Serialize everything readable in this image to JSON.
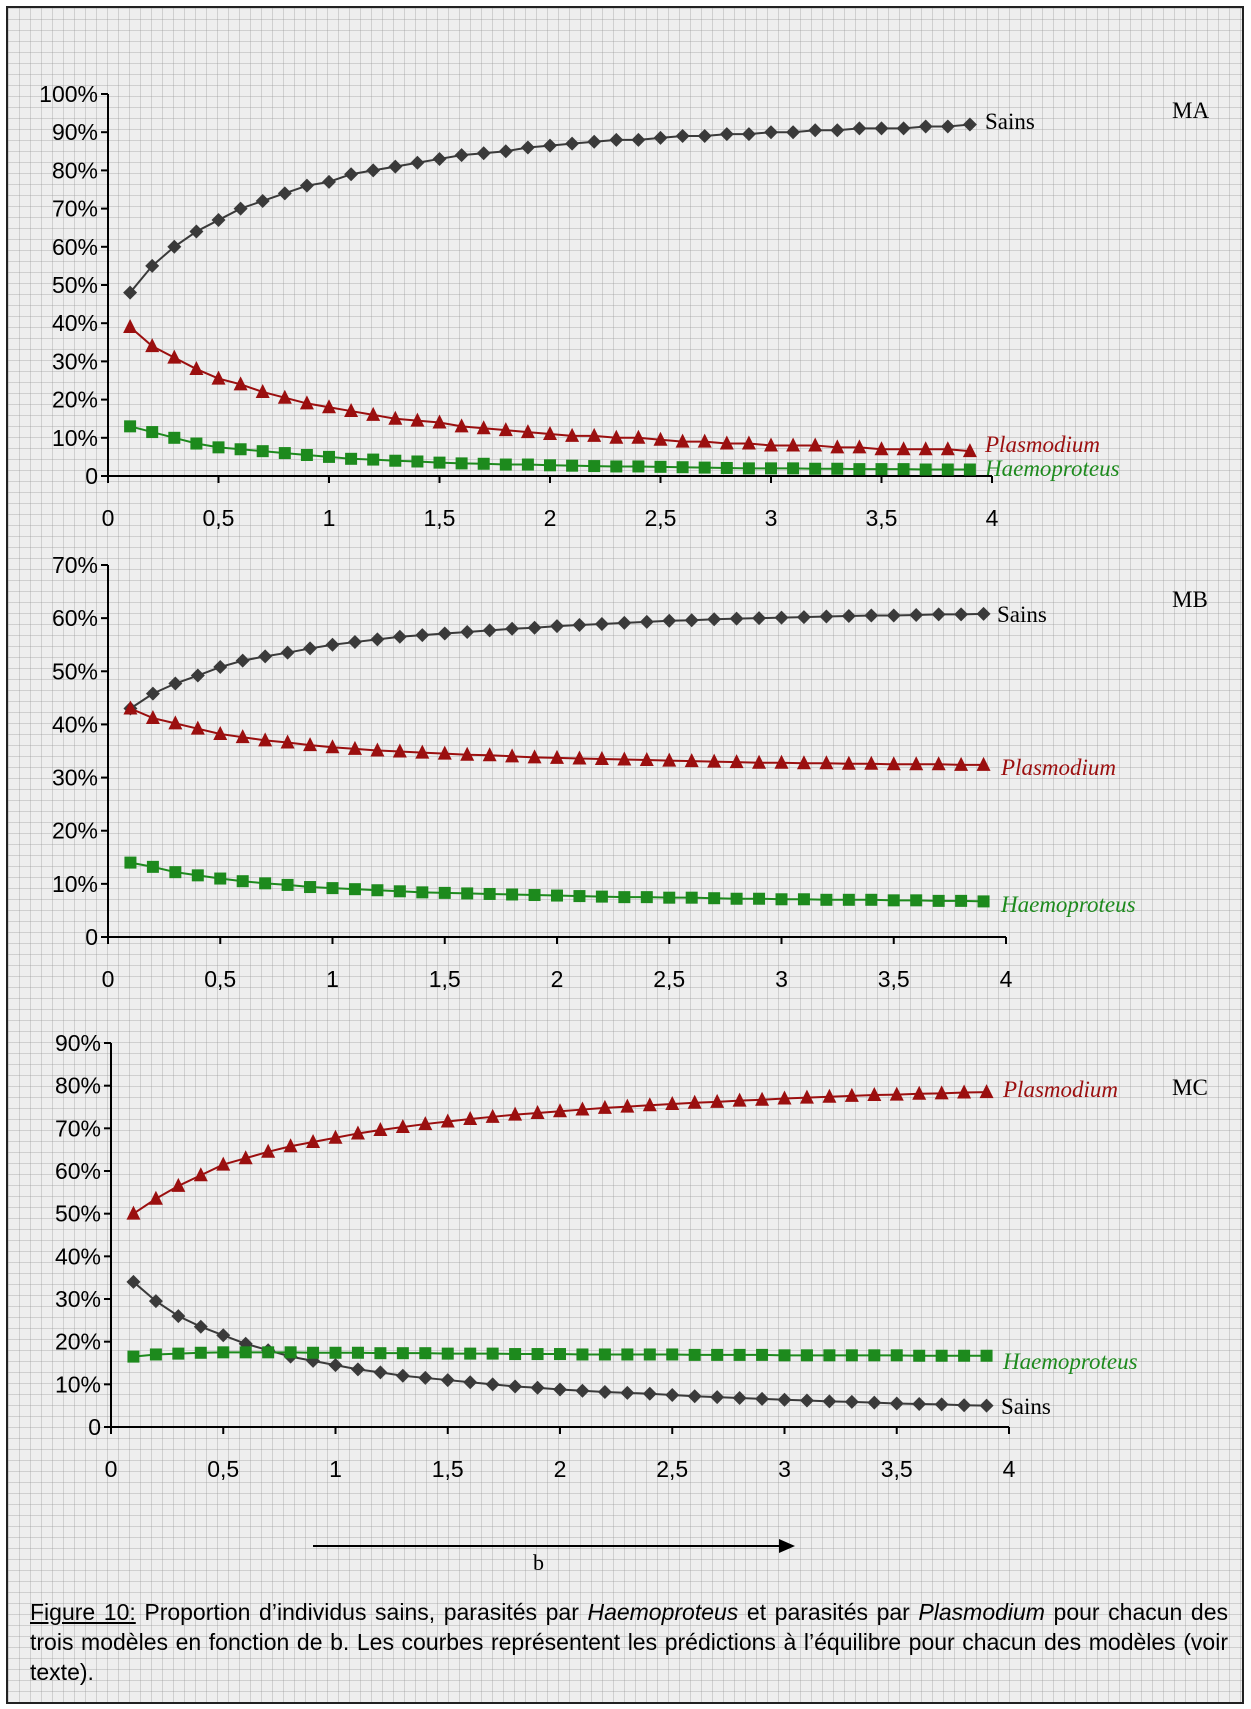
{
  "x_axis_arrow_label": "b",
  "caption": {
    "lead": "Figure 10:",
    "t1": " Proportion d’individus sains, parasités par ",
    "i1": "Haemoproteus",
    "t2": " et parasités par ",
    "i2": "Plasmodium",
    "t3": " pour chacun des trois modèles en fonction de b. Les courbes représentent les prédictions à l’équilibre pour chacun des modèles (voir texte)."
  },
  "colors": {
    "Sains": "#3a3a3a",
    "Plasmodium": "#9b0f0f",
    "Haemoproteus": "#1d8a1d"
  },
  "chart_data": [
    {
      "type": "line",
      "panel_label": "MA",
      "xlim": [
        0,
        4
      ],
      "xticks": [
        "0",
        "0,5",
        "1",
        "1,5",
        "2",
        "2,5",
        "3",
        "3,5",
        "4"
      ],
      "ylim": [
        0,
        100
      ],
      "yticks": [
        "0",
        "10%",
        "20%",
        "30%",
        "40%",
        "50%",
        "60%",
        "70%",
        "80%",
        "90%",
        "100%"
      ],
      "x": [
        0.1,
        0.2,
        0.3,
        0.4,
        0.5,
        0.6,
        0.7,
        0.8,
        0.9,
        1.0,
        1.1,
        1.2,
        1.3,
        1.4,
        1.5,
        1.6,
        1.7,
        1.8,
        1.9,
        2.0,
        2.1,
        2.2,
        2.3,
        2.4,
        2.5,
        2.6,
        2.7,
        2.8,
        2.9,
        3.0,
        3.1,
        3.2,
        3.3,
        3.4,
        3.5,
        3.6,
        3.7,
        3.8,
        3.9
      ],
      "series": [
        {
          "name": "Sains",
          "marker": "diamond",
          "values": [
            48,
            55,
            60,
            64,
            67,
            70,
            72,
            74,
            76,
            77,
            79,
            80,
            81,
            82,
            83,
            84,
            84.5,
            85,
            86,
            86.5,
            87,
            87.5,
            88,
            88,
            88.5,
            89,
            89,
            89.5,
            89.5,
            90,
            90,
            90.5,
            90.5,
            91,
            91,
            91,
            91.5,
            91.5,
            92
          ]
        },
        {
          "name": "Plasmodium",
          "marker": "triangle",
          "values": [
            39,
            34,
            31,
            28,
            25.5,
            24,
            22,
            20.5,
            19,
            18,
            17,
            16,
            15,
            14.5,
            14,
            13,
            12.5,
            12,
            11.5,
            11,
            10.5,
            10.5,
            10,
            10,
            9.5,
            9,
            9,
            8.5,
            8.5,
            8,
            8,
            8,
            7.5,
            7.5,
            7,
            7,
            7,
            7,
            6.5
          ]
        },
        {
          "name": "Haemoproteus",
          "marker": "square",
          "values": [
            13,
            11.5,
            10,
            8.5,
            7.5,
            7,
            6.5,
            6,
            5.5,
            5,
            4.5,
            4.3,
            4,
            3.8,
            3.5,
            3.3,
            3.2,
            3,
            3,
            2.8,
            2.7,
            2.6,
            2.5,
            2.5,
            2.4,
            2.3,
            2.2,
            2.1,
            2,
            2,
            2,
            1.9,
            1.9,
            1.8,
            1.8,
            1.8,
            1.7,
            1.7,
            1.7
          ]
        }
      ]
    },
    {
      "type": "line",
      "panel_label": "MB",
      "xlim": [
        0,
        4
      ],
      "xticks": [
        "0",
        "0,5",
        "1",
        "1,5",
        "2",
        "2,5",
        "3",
        "3,5",
        "4"
      ],
      "ylim": [
        0,
        70
      ],
      "yticks": [
        "0",
        "10%",
        "20%",
        "30%",
        "40%",
        "50%",
        "60%",
        "70%"
      ],
      "x": [
        0.1,
        0.2,
        0.3,
        0.4,
        0.5,
        0.6,
        0.7,
        0.8,
        0.9,
        1.0,
        1.1,
        1.2,
        1.3,
        1.4,
        1.5,
        1.6,
        1.7,
        1.8,
        1.9,
        2.0,
        2.1,
        2.2,
        2.3,
        2.4,
        2.5,
        2.6,
        2.7,
        2.8,
        2.9,
        3.0,
        3.1,
        3.2,
        3.3,
        3.4,
        3.5,
        3.6,
        3.7,
        3.8,
        3.9
      ],
      "series": [
        {
          "name": "Sains",
          "marker": "diamond",
          "values": [
            43,
            45.8,
            47.7,
            49.2,
            50.8,
            52,
            52.8,
            53.5,
            54.3,
            55,
            55.5,
            56,
            56.5,
            56.8,
            57.1,
            57.4,
            57.7,
            58,
            58.2,
            58.5,
            58.7,
            58.9,
            59.1,
            59.3,
            59.5,
            59.6,
            59.8,
            59.9,
            60,
            60.1,
            60.2,
            60.3,
            60.4,
            60.5,
            60.5,
            60.6,
            60.7,
            60.7,
            60.8
          ]
        },
        {
          "name": "Plasmodium",
          "marker": "triangle",
          "values": [
            43,
            41.2,
            40.2,
            39.2,
            38.2,
            37.6,
            37,
            36.6,
            36.1,
            35.7,
            35.4,
            35.1,
            34.9,
            34.7,
            34.5,
            34.3,
            34.2,
            34,
            33.8,
            33.7,
            33.6,
            33.5,
            33.4,
            33.3,
            33.2,
            33.1,
            33,
            32.9,
            32.8,
            32.8,
            32.7,
            32.7,
            32.6,
            32.6,
            32.5,
            32.5,
            32.5,
            32.4,
            32.4
          ]
        },
        {
          "name": "Haemoproteus",
          "marker": "square",
          "values": [
            14,
            13.2,
            12.2,
            11.6,
            11,
            10.5,
            10.1,
            9.8,
            9.4,
            9.2,
            9,
            8.8,
            8.6,
            8.4,
            8.3,
            8.2,
            8.1,
            8,
            7.9,
            7.8,
            7.7,
            7.6,
            7.5,
            7.5,
            7.4,
            7.4,
            7.3,
            7.2,
            7.2,
            7.1,
            7.1,
            7,
            7,
            7,
            6.9,
            6.9,
            6.8,
            6.8,
            6.7
          ]
        }
      ]
    },
    {
      "type": "line",
      "panel_label": "MC",
      "xlim": [
        0,
        4
      ],
      "xticks": [
        "0",
        "0,5",
        "1",
        "1,5",
        "2",
        "2,5",
        "3",
        "3,5",
        "4"
      ],
      "ylim": [
        0,
        90
      ],
      "yticks": [
        "0",
        "10%",
        "20%",
        "30%",
        "40%",
        "50%",
        "60%",
        "70%",
        "80%",
        "90%"
      ],
      "x": [
        0.1,
        0.2,
        0.3,
        0.4,
        0.5,
        0.6,
        0.7,
        0.8,
        0.9,
        1.0,
        1.1,
        1.2,
        1.3,
        1.4,
        1.5,
        1.6,
        1.7,
        1.8,
        1.9,
        2.0,
        2.1,
        2.2,
        2.3,
        2.4,
        2.5,
        2.6,
        2.7,
        2.8,
        2.9,
        3.0,
        3.1,
        3.2,
        3.3,
        3.4,
        3.5,
        3.6,
        3.7,
        3.8,
        3.9
      ],
      "series": [
        {
          "name": "Sains",
          "marker": "diamond",
          "values": [
            34,
            29.5,
            26,
            23.5,
            21.5,
            19.5,
            18,
            16.5,
            15.5,
            14.5,
            13.5,
            12.8,
            12,
            11.5,
            11,
            10.5,
            10,
            9.5,
            9.2,
            8.8,
            8.5,
            8.2,
            8,
            7.8,
            7.5,
            7.2,
            7,
            6.8,
            6.6,
            6.4,
            6.2,
            6,
            5.9,
            5.7,
            5.5,
            5.4,
            5.3,
            5.1,
            5
          ]
        },
        {
          "name": "Plasmodium",
          "marker": "triangle",
          "values": [
            50,
            53.5,
            56.5,
            59,
            61.5,
            63,
            64.5,
            65.8,
            66.8,
            67.8,
            68.8,
            69.6,
            70.3,
            71,
            71.6,
            72.2,
            72.7,
            73.2,
            73.6,
            74,
            74.4,
            74.8,
            75.1,
            75.4,
            75.7,
            76,
            76.2,
            76.5,
            76.7,
            77,
            77.2,
            77.4,
            77.6,
            77.8,
            77.9,
            78.1,
            78.2,
            78.4,
            78.5
          ]
        },
        {
          "name": "Haemoproteus",
          "marker": "square",
          "values": [
            16.5,
            17,
            17.2,
            17.4,
            17.5,
            17.5,
            17.5,
            17.5,
            17.4,
            17.4,
            17.4,
            17.3,
            17.3,
            17.3,
            17.2,
            17.2,
            17.2,
            17.1,
            17.1,
            17.1,
            17,
            17,
            17,
            17,
            17,
            16.9,
            16.9,
            16.9,
            16.9,
            16.8,
            16.8,
            16.8,
            16.8,
            16.8,
            16.8,
            16.7,
            16.7,
            16.7,
            16.7
          ]
        }
      ]
    }
  ]
}
